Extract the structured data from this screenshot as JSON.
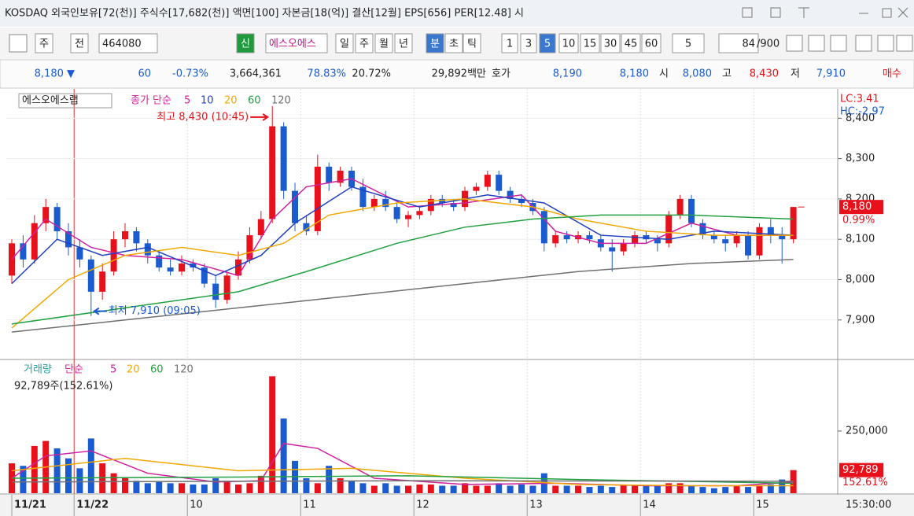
{
  "ui": {
    "title": "KOSDAQ 외국인보유[72(천)] 주식수[17,682(천)] 액면[100] 자본금[18(억)] 결산[12월] EPS[656] PER[12.48] 시",
    "toolbar": [
      "주",
      "전",
      "464080",
      "신",
      "에스오에스",
      "일",
      "주",
      "월",
      "년",
      "분",
      "초",
      "틱",
      "1",
      "3",
      "5",
      "10",
      "15",
      "30",
      "45",
      "60",
      "5",
      "84",
      "/900"
    ],
    "quote": [
      "8,180 ▼",
      "60",
      "-0.73%",
      "3,664,361",
      "78.83%",
      "20.72%",
      "29,892백만",
      "호가",
      "8,190",
      "8,180",
      "시",
      "8,080",
      "고",
      "8,430",
      "저",
      "7,910",
      "매수"
    ]
  },
  "chart_data": [
    {
      "type": "candlestick",
      "name": "에스오에스랩",
      "up_color": "#e8101a",
      "down_color": "#1a5bd0",
      "candles": [
        [
          8010,
          8100,
          7990,
          8090
        ],
        [
          8090,
          8110,
          8030,
          8050
        ],
        [
          8050,
          8160,
          8040,
          8140
        ],
        [
          8140,
          8200,
          8120,
          8180
        ],
        [
          8180,
          8190,
          8100,
          8120
        ],
        [
          8120,
          8140,
          8060,
          8080
        ],
        [
          8080,
          8100,
          8030,
          8050
        ],
        [
          8050,
          8060,
          7910,
          7970
        ],
        [
          7970,
          8040,
          7950,
          8020
        ],
        [
          8020,
          8120,
          8010,
          8100
        ],
        [
          8100,
          8140,
          8080,
          8120
        ],
        [
          8120,
          8130,
          8070,
          8090
        ],
        [
          8090,
          8100,
          8040,
          8060
        ],
        [
          8060,
          8070,
          8020,
          8030
        ],
        [
          8030,
          8050,
          8010,
          8020
        ],
        [
          8020,
          8060,
          8010,
          8040
        ],
        [
          8040,
          8050,
          8020,
          8030
        ],
        [
          8030,
          8040,
          7980,
          7990
        ],
        [
          7990,
          8010,
          7930,
          7950
        ],
        [
          7950,
          8020,
          7940,
          8010
        ],
        [
          8010,
          8070,
          8000,
          8050
        ],
        [
          8050,
          8130,
          8040,
          8110
        ],
        [
          8110,
          8170,
          8100,
          8150
        ],
        [
          8150,
          8430,
          8140,
          8380
        ],
        [
          8380,
          8390,
          8200,
          8220
        ],
        [
          8220,
          8240,
          8120,
          8140
        ],
        [
          8140,
          8160,
          8110,
          8120
        ],
        [
          8120,
          8310,
          8110,
          8280
        ],
        [
          8280,
          8290,
          8220,
          8240
        ],
        [
          8240,
          8280,
          8230,
          8270
        ],
        [
          8270,
          8280,
          8220,
          8230
        ],
        [
          8230,
          8250,
          8170,
          8180
        ],
        [
          8180,
          8210,
          8170,
          8200
        ],
        [
          8200,
          8220,
          8170,
          8180
        ],
        [
          8180,
          8190,
          8140,
          8150
        ],
        [
          8150,
          8170,
          8130,
          8160
        ],
        [
          8160,
          8180,
          8150,
          8170
        ],
        [
          8170,
          8210,
          8160,
          8200
        ],
        [
          8200,
          8210,
          8180,
          8190
        ],
        [
          8190,
          8200,
          8170,
          8180
        ],
        [
          8180,
          8230,
          8170,
          8220
        ],
        [
          8220,
          8240,
          8210,
          8230
        ],
        [
          8230,
          8270,
          8220,
          8260
        ],
        [
          8260,
          8270,
          8210,
          8220
        ],
        [
          8220,
          8230,
          8190,
          8200
        ],
        [
          8200,
          8210,
          8180,
          8190
        ],
        [
          8190,
          8200,
          8160,
          8170
        ],
        [
          8170,
          8180,
          8070,
          8090
        ],
        [
          8090,
          8120,
          8080,
          8110
        ],
        [
          8110,
          8120,
          8090,
          8100
        ],
        [
          8100,
          8120,
          8090,
          8110
        ],
        [
          8110,
          8120,
          8090,
          8100
        ],
        [
          8100,
          8110,
          8070,
          8080
        ],
        [
          8080,
          8100,
          8020,
          8070
        ],
        [
          8070,
          8100,
          8060,
          8090
        ],
        [
          8090,
          8120,
          8080,
          8110
        ],
        [
          8110,
          8120,
          8090,
          8100
        ],
        [
          8100,
          8110,
          8070,
          8090
        ],
        [
          8090,
          8170,
          8080,
          8160
        ],
        [
          8160,
          8210,
          8150,
          8200
        ],
        [
          8200,
          8210,
          8130,
          8140
        ],
        [
          8140,
          8150,
          8100,
          8110
        ],
        [
          8110,
          8120,
          8090,
          8100
        ],
        [
          8100,
          8110,
          8070,
          8090
        ],
        [
          8090,
          8120,
          8080,
          8110
        ],
        [
          8110,
          8120,
          8050,
          8060
        ],
        [
          8060,
          8140,
          8050,
          8130
        ],
        [
          8130,
          8150,
          8090,
          8110
        ],
        [
          8110,
          8130,
          8040,
          8100
        ],
        [
          8100,
          8180,
          8090,
          8180
        ]
      ],
      "xlim": [
        -0.5,
        72.9
      ],
      "xticks": [
        {
          "value": 0,
          "label": "11/21"
        },
        {
          "value": 5.5,
          "label": "11/22"
        },
        {
          "value": 15.5,
          "label": "10"
        },
        {
          "value": 25.5,
          "label": "11"
        },
        {
          "value": 35.5,
          "label": "12"
        },
        {
          "value": 45.5,
          "label": "13"
        },
        {
          "value": 55.5,
          "label": "14"
        },
        {
          "value": 65.5,
          "label": "15"
        }
      ],
      "ylim": [
        7806,
        8463
      ],
      "yticks": [
        {
          "value": 8400,
          "label": "8,400"
        },
        {
          "value": 8300,
          "label": "8,300"
        },
        {
          "value": 8200,
          "label": "8,200"
        },
        {
          "value": 8100,
          "label": "8,100"
        },
        {
          "value": 8000,
          "label": "8,000"
        },
        {
          "value": 7900,
          "label": "7,900"
        }
      ],
      "ma_label": "종가 단순",
      "series": [
        {
          "name": "5",
          "color": "#d020a0",
          "x": [
            0,
            3,
            7,
            10,
            15,
            20,
            23,
            26,
            30,
            35,
            40,
            45,
            48,
            52,
            56,
            60,
            64,
            69
          ],
          "values": [
            8050,
            8150,
            8080,
            8060,
            8050,
            8010,
            8150,
            8230,
            8250,
            8180,
            8190,
            8210,
            8120,
            8090,
            8090,
            8140,
            8110,
            8110
          ]
        },
        {
          "name": "10",
          "color": "#2040c0",
          "x": [
            0,
            4,
            8,
            12,
            18,
            22,
            25,
            30,
            36,
            42,
            47,
            52,
            58,
            62,
            69
          ],
          "values": [
            7990,
            8100,
            8060,
            8080,
            8010,
            8060,
            8140,
            8230,
            8180,
            8210,
            8190,
            8110,
            8100,
            8120,
            8110
          ]
        },
        {
          "name": "20",
          "color": "#f0a800",
          "x": [
            0,
            5,
            10,
            15,
            20,
            24,
            28,
            34,
            40,
            46,
            50,
            56,
            62,
            69
          ],
          "values": [
            7880,
            8000,
            8060,
            8080,
            8060,
            8090,
            8160,
            8190,
            8200,
            8180,
            8150,
            8120,
            8110,
            8110
          ]
        },
        {
          "name": "60",
          "color": "#20a040",
          "x": [
            0,
            10,
            20,
            26,
            34,
            40,
            46,
            52,
            60,
            69
          ],
          "values": [
            7890,
            7930,
            7970,
            8020,
            8090,
            8130,
            8150,
            8160,
            8160,
            8150
          ]
        },
        {
          "name": "120",
          "color": "#707070",
          "x": [
            0,
            10,
            20,
            30,
            40,
            50,
            60,
            69
          ],
          "values": [
            7870,
            7900,
            7930,
            7960,
            7990,
            8020,
            8040,
            8050
          ]
        }
      ],
      "annotations": [
        {
          "text": "최고 8,430 (10:45)",
          "x": 23,
          "y": 8430
        },
        {
          "text": "최저 7,910 (09:05)",
          "x": 7,
          "y": 7910
        }
      ],
      "lc": "LC:3.41",
      "hc": "HC:-2.97",
      "last": {
        "value": 8180,
        "label": "8,180"
      },
      "change": "0.99%"
    },
    {
      "type": "bar",
      "name": "거래량",
      "values": [
        120000,
        110000,
        190000,
        210000,
        180000,
        140000,
        100000,
        220000,
        120000,
        80000,
        60000,
        50000,
        40000,
        45000,
        40000,
        40000,
        35000,
        35000,
        60000,
        50000,
        35000,
        40000,
        70000,
        470000,
        300000,
        130000,
        60000,
        40000,
        110000,
        60000,
        50000,
        40000,
        30000,
        40000,
        30000,
        30000,
        35000,
        35000,
        30000,
        30000,
        40000,
        30000,
        30000,
        40000,
        30000,
        35000,
        30000,
        80000,
        30000,
        30000,
        30000,
        25000,
        30000,
        25000,
        35000,
        30000,
        30000,
        30000,
        40000,
        40000,
        30000,
        25000,
        20000,
        25000,
        30000,
        25000,
        30000,
        35000,
        55000,
        92789
      ],
      "ylim": [
        0,
        528000
      ],
      "yticks": [
        {
          "value": 250000,
          "label": "250,000"
        }
      ],
      "ma_label": "단순",
      "series": [
        {
          "name": "5",
          "color": "#d020a0",
          "x": [
            0,
            3,
            7,
            12,
            18,
            22,
            24,
            27,
            32,
            40,
            48,
            56,
            64,
            69
          ],
          "values": [
            60000,
            150000,
            170000,
            80000,
            45000,
            50000,
            200000,
            180000,
            60000,
            35000,
            40000,
            30000,
            30000,
            45000
          ]
        },
        {
          "name": "20",
          "color": "#f0a800",
          "x": [
            0,
            10,
            20,
            30,
            40,
            50,
            60,
            69
          ],
          "values": [
            90000,
            140000,
            90000,
            100000,
            60000,
            35000,
            30000,
            30000
          ]
        },
        {
          "name": "60",
          "color": "#20a040",
          "x": [
            0,
            20,
            35,
            50,
            69
          ],
          "values": [
            60000,
            65000,
            70000,
            55000,
            40000
          ]
        },
        {
          "name": "120",
          "color": "#707070",
          "x": [
            0,
            35,
            69
          ],
          "values": [
            45000,
            50000,
            48000
          ]
        }
      ],
      "info": "92,789주(152.61%)",
      "last": {
        "value": 92789,
        "label": "92,789"
      },
      "ratio": "152.61%",
      "time": "15:30:00"
    }
  ]
}
